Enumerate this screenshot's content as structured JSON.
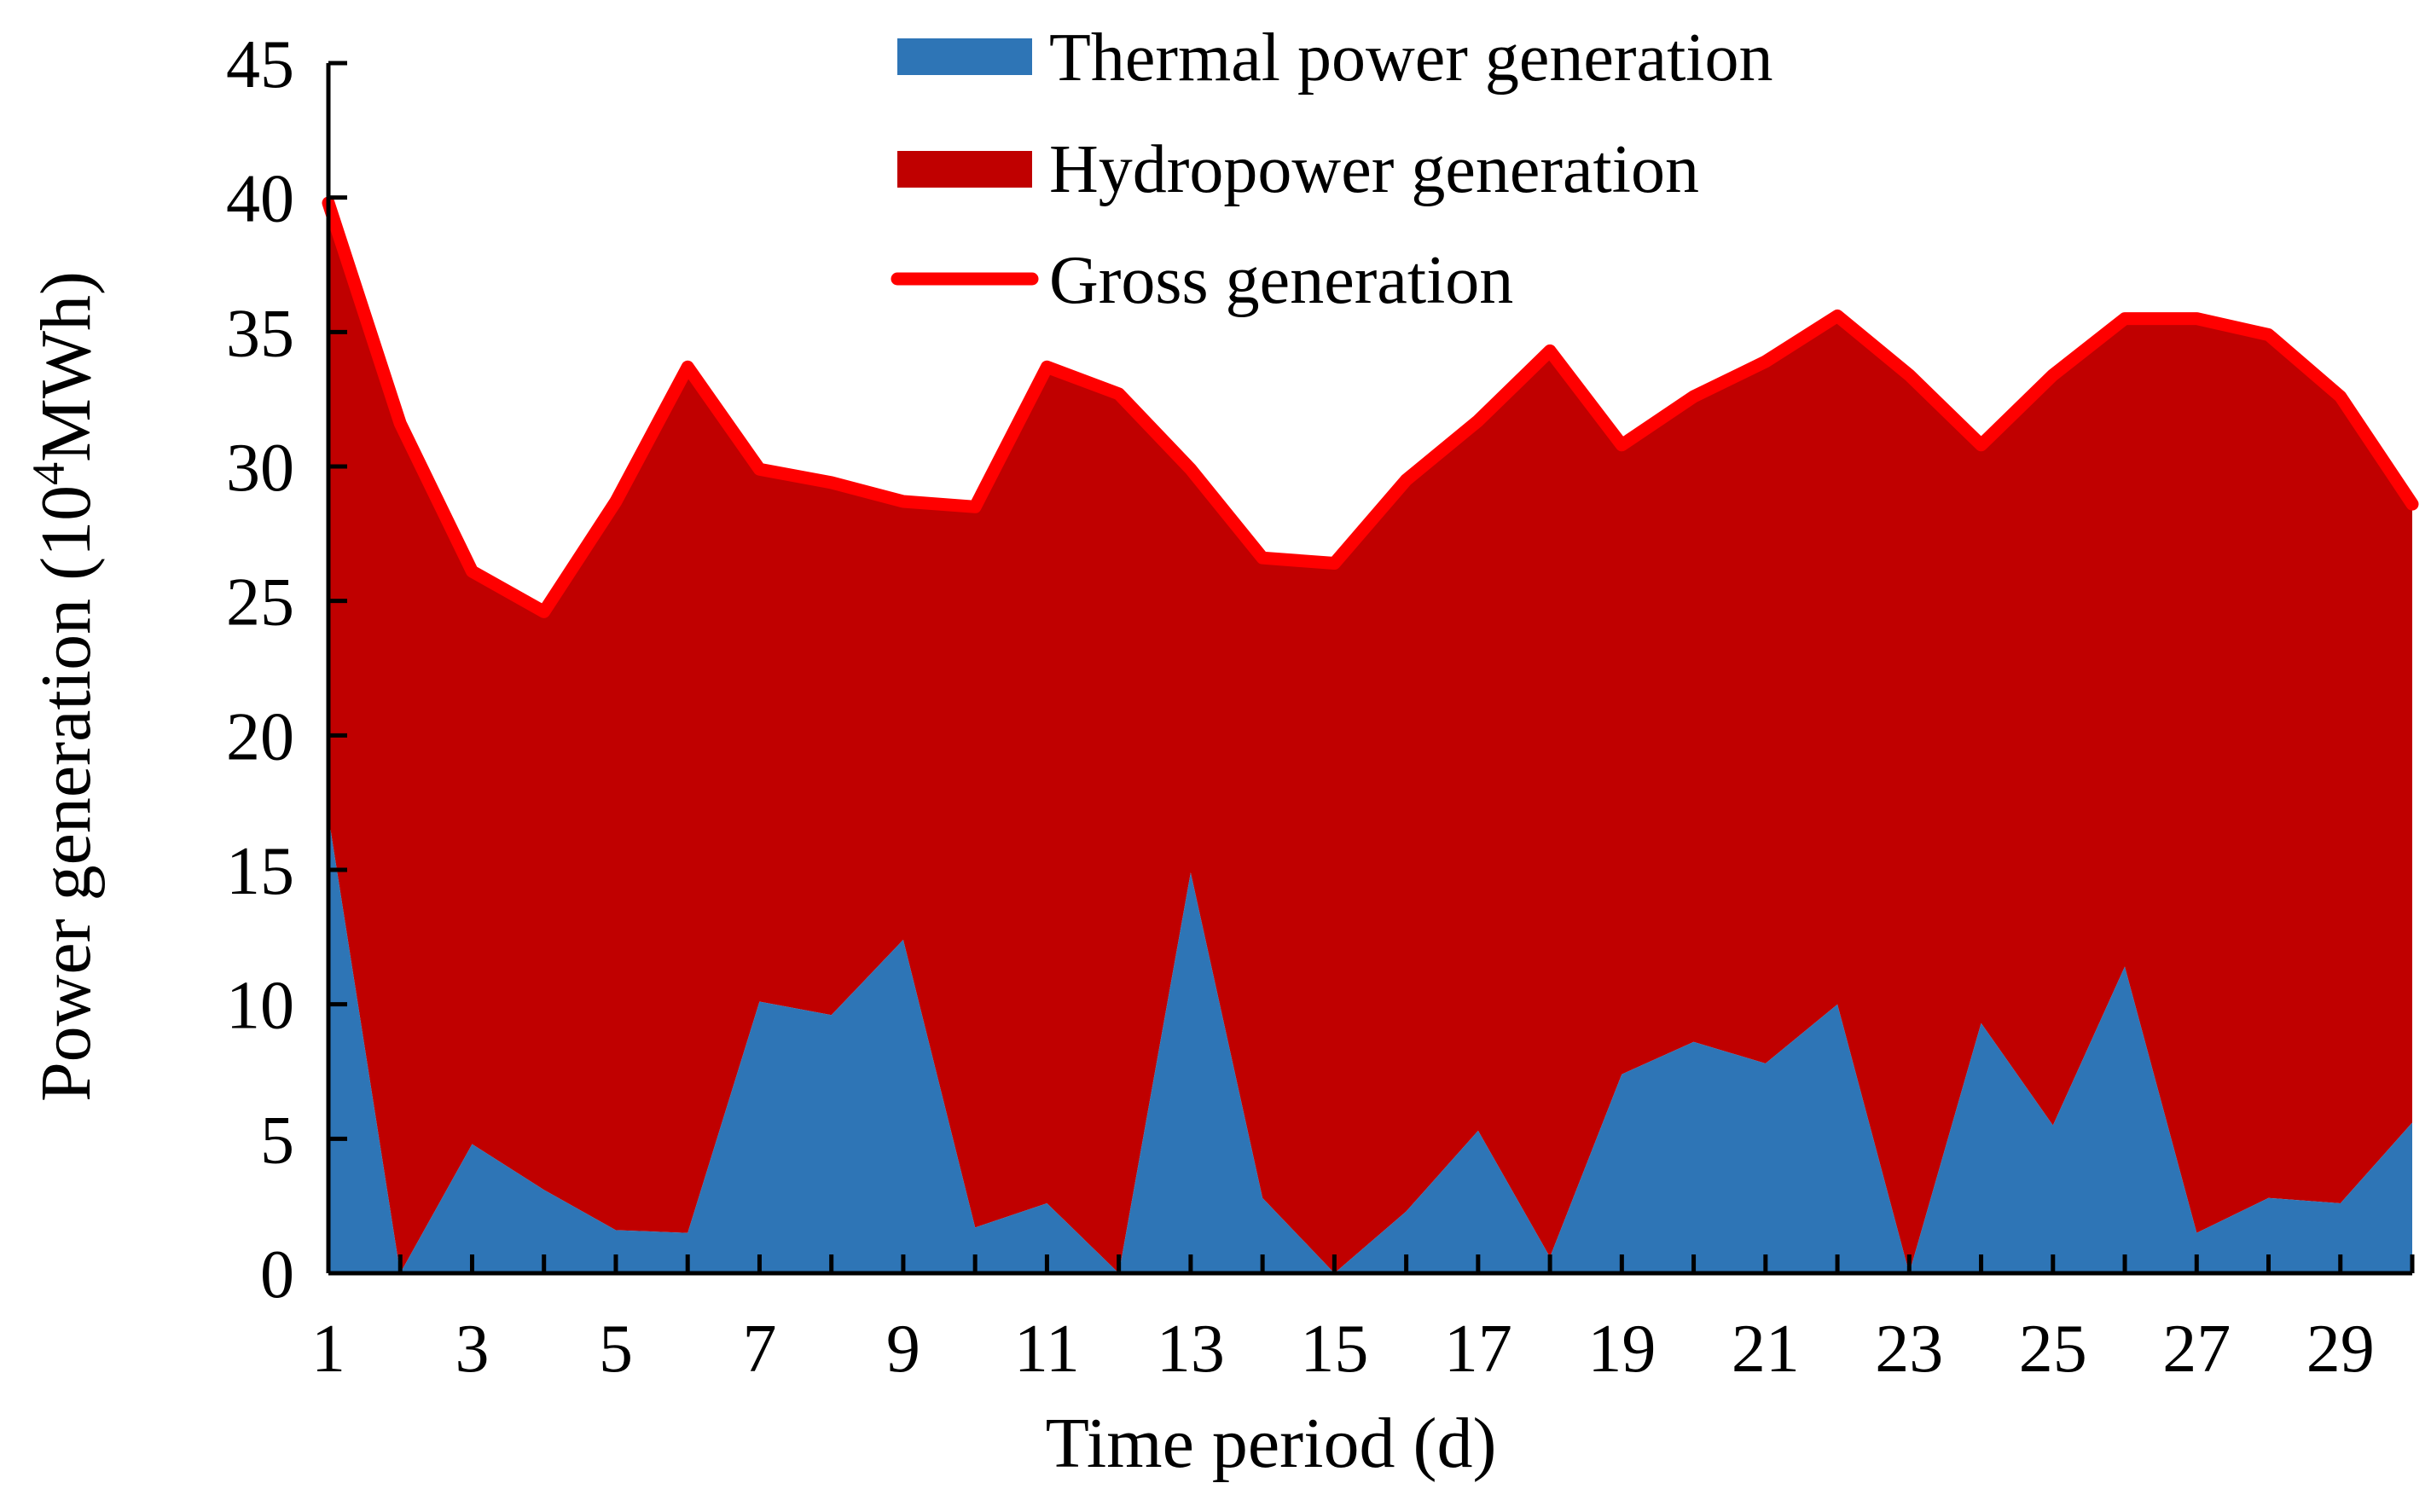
{
  "chart_data": {
    "type": "area",
    "title": "",
    "xlabel": "Time period (d)",
    "ylabel": "Power generation (10",
    "ylabel_sup": "4",
    "ylabel_unit": "MWh)",
    "xlim": [
      1,
      30
    ],
    "ylim": [
      0,
      45
    ],
    "x_ticks": [
      1,
      3,
      5,
      7,
      9,
      11,
      13,
      15,
      17,
      19,
      21,
      23,
      25,
      27,
      29
    ],
    "y_ticks": [
      0,
      5,
      10,
      15,
      20,
      25,
      30,
      35,
      40,
      45
    ],
    "x": [
      1,
      2,
      3,
      4,
      5,
      6,
      7,
      8,
      9,
      10,
      11,
      12,
      13,
      14,
      15,
      16,
      17,
      18,
      19,
      20,
      21,
      22,
      23,
      24,
      25,
      26,
      27,
      28,
      29,
      30
    ],
    "series": [
      {
        "name": "Thermal power generation",
        "kind": "area",
        "color": "#2e75b6",
        "values": [
          17.0,
          0.0,
          4.8,
          3.1,
          1.6,
          1.5,
          10.1,
          9.6,
          12.4,
          1.7,
          2.6,
          0.0,
          14.9,
          2.8,
          0.0,
          2.3,
          5.3,
          0.6,
          7.4,
          8.6,
          7.8,
          10.0,
          0.0,
          9.3,
          5.5,
          11.4,
          1.5,
          2.8,
          2.6,
          5.6
        ]
      },
      {
        "name": "Hydropower generation",
        "kind": "area",
        "color": "#c00000",
        "values": [
          22.8,
          31.6,
          21.3,
          21.5,
          27.1,
          32.2,
          19.8,
          19.8,
          16.3,
          26.8,
          31.1,
          32.7,
          15.0,
          23.8,
          26.4,
          27.2,
          26.4,
          33.7,
          23.4,
          24.0,
          26.1,
          25.6,
          33.4,
          21.5,
          27.9,
          24.1,
          34.0,
          32.1,
          30.0,
          23.0
        ]
      },
      {
        "name": "Gross generation",
        "kind": "line",
        "color": "#ff0000",
        "values": [
          39.8,
          31.6,
          26.1,
          24.6,
          28.7,
          33.7,
          29.9,
          29.4,
          28.7,
          28.5,
          33.7,
          32.7,
          29.9,
          26.6,
          26.4,
          29.5,
          31.7,
          34.3,
          30.8,
          32.6,
          33.9,
          35.6,
          33.4,
          30.8,
          33.4,
          35.5,
          35.5,
          34.9,
          32.6,
          28.6
        ]
      }
    ],
    "legend": {
      "position": "top-center",
      "entries": [
        "Thermal power generation",
        "Hydropower generation",
        "Gross generation"
      ]
    },
    "axis_color": "#000000"
  }
}
